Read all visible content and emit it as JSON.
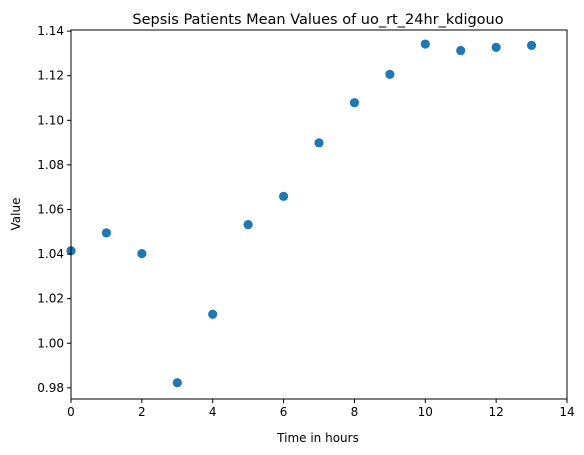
{
  "chart_data": {
    "type": "scatter",
    "title": "Sepsis Patients Mean Values of uo_rt_24hr_kdigouo",
    "xlabel": "Time in hours",
    "ylabel": "Value",
    "xlim": [
      0,
      14
    ],
    "ylim": [
      0.975,
      1.1405
    ],
    "xticks": [
      0,
      2,
      4,
      6,
      8,
      10,
      12,
      14
    ],
    "yticks": [
      0.98,
      1.0,
      1.02,
      1.04,
      1.06,
      1.08,
      1.1,
      1.12,
      1.14
    ],
    "ytick_labels": [
      "0.98",
      "1.00",
      "1.02",
      "1.04",
      "1.06",
      "1.08",
      "1.10",
      "1.12",
      "1.14"
    ],
    "grid": false,
    "marker_color": "#1f77b4",
    "x": [
      0,
      1,
      2,
      3,
      4,
      5,
      6,
      7,
      8,
      9,
      10,
      11,
      12,
      13
    ],
    "y": [
      1.0415,
      1.0495,
      1.0402,
      0.9823,
      1.013,
      1.0532,
      1.0659,
      1.0899,
      1.1079,
      1.1206,
      1.1342,
      1.1313,
      1.1327,
      1.1336
    ]
  }
}
